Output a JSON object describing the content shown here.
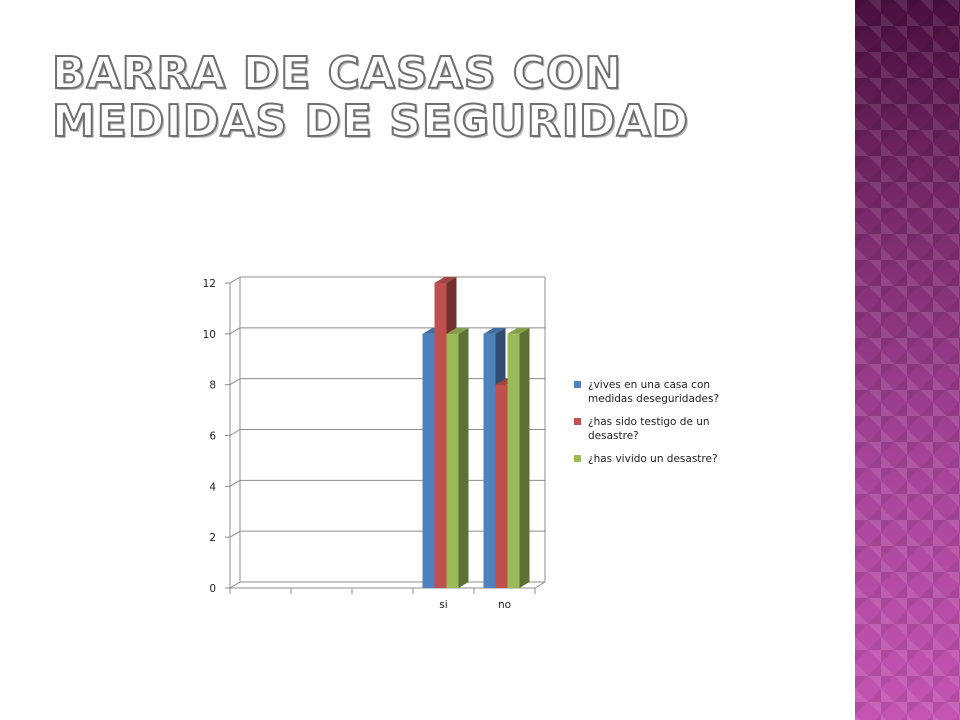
{
  "slide": {
    "title": "BARRA DE CASAS CON MEDIDAS DE SEGURIDAD",
    "side_band_colors": [
      "#4a0f3f",
      "#c455b3"
    ]
  },
  "chart_data": {
    "type": "bar",
    "style": "3d-clustered-column",
    "title": "",
    "xlabel": "",
    "ylabel": "",
    "ylim": [
      0,
      12
    ],
    "yticks": [
      "0",
      "2",
      "4",
      "6",
      "8",
      "10",
      "12"
    ],
    "categories": [
      "",
      "",
      "",
      "si",
      "no"
    ],
    "series": [
      {
        "name": "¿vives en una casa con medidas deseguridades?",
        "color": "#4f81bd",
        "values": [
          null,
          null,
          null,
          10,
          10
        ]
      },
      {
        "name": "¿has sido testigo de un desastre?",
        "color": "#c0504d",
        "values": [
          null,
          null,
          null,
          12,
          8
        ]
      },
      {
        "name": "¿has vivido un desastre?",
        "color": "#9bbb59",
        "values": [
          null,
          null,
          null,
          10,
          10
        ]
      }
    ],
    "grid": true,
    "legend_position": "right"
  }
}
